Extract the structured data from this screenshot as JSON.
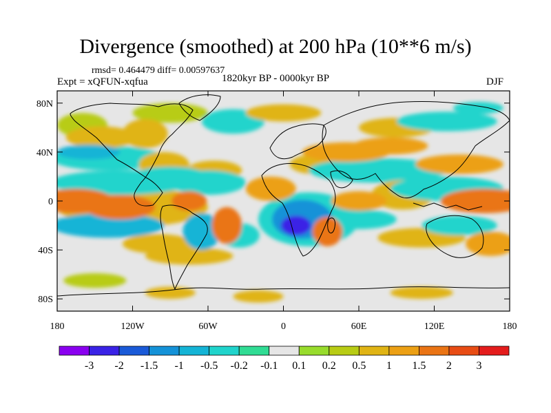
{
  "title": "Divergence (smoothed) at 200 hPa (10**6 m/s)",
  "stats": "rmsd= 0.464479 diff= 0.00597637",
  "experiment": "Expt = xQFUN-xqfua",
  "period": "1820kyr BP - 0000kyr BP",
  "season": "DJF",
  "chart_data": {
    "type": "heatmap",
    "variable": "Divergence (smoothed) at 200 hPa",
    "units": "10**6 m/s",
    "x_ticks": [
      "180",
      "120W",
      "60W",
      "0",
      "60E",
      "120E",
      "180"
    ],
    "y_ticks": [
      "80N",
      "40N",
      "0",
      "40S",
      "80S"
    ],
    "x_range": [
      -180,
      180
    ],
    "y_range": [
      -90,
      90
    ],
    "y_tick_values": [
      80,
      40,
      0,
      -40,
      -80
    ],
    "colorbar": {
      "labels": [
        "-3",
        "-2",
        "-1.5",
        "-1",
        "-0.5",
        "-0.2",
        "-0.1",
        "0.1",
        "0.2",
        "0.5",
        "1",
        "1.5",
        "2",
        "3"
      ],
      "colors": [
        "#8a00f0",
        "#3a22e6",
        "#1a5ad8",
        "#1492d8",
        "#14b4d6",
        "#20d4cc",
        "#30dc94",
        "#e6e6e6",
        "#98dc2c",
        "#b8cc14",
        "#e0b414",
        "#eca014",
        "#ea7414",
        "#e84c14",
        "#e41c1c"
      ]
    },
    "features": [
      {
        "lon": 10,
        "lat": -20,
        "value": -3,
        "rx": 12,
        "ry": 8
      },
      {
        "lon": 15,
        "lat": -15,
        "value": -1.5,
        "rx": 24,
        "ry": 16
      },
      {
        "lon": 20,
        "lat": -15,
        "value": -0.5,
        "rx": 40,
        "ry": 22
      },
      {
        "lon": -165,
        "lat": 0,
        "value": 1.5,
        "rx": 30,
        "ry": 10
      },
      {
        "lon": -130,
        "lat": -5,
        "value": 1.5,
        "rx": 28,
        "ry": 10
      },
      {
        "lon": -120,
        "lat": -5,
        "value": 0.5,
        "rx": 60,
        "ry": 16
      },
      {
        "lon": -140,
        "lat": -20,
        "value": -1,
        "rx": 45,
        "ry": 10
      },
      {
        "lon": -130,
        "lat": 15,
        "value": -0.5,
        "rx": 55,
        "ry": 10
      },
      {
        "lon": -140,
        "lat": 35,
        "value": -0.5,
        "rx": 45,
        "ry": 10
      },
      {
        "lon": -155,
        "lat": 40,
        "value": -1,
        "rx": 25,
        "ry": 6
      },
      {
        "lon": -145,
        "lat": 52,
        "value": 0.5,
        "rx": 28,
        "ry": 9
      },
      {
        "lon": -110,
        "lat": 55,
        "value": 0.5,
        "rx": 18,
        "ry": 12
      },
      {
        "lon": -95,
        "lat": 30,
        "value": 0.5,
        "rx": 20,
        "ry": 10
      },
      {
        "lon": -55,
        "lat": 25,
        "value": 0.5,
        "rx": 22,
        "ry": 8
      },
      {
        "lon": -60,
        "lat": 15,
        "value": -0.5,
        "rx": 30,
        "ry": 10
      },
      {
        "lon": -90,
        "lat": 20,
        "value": -0.5,
        "rx": 30,
        "ry": 8
      },
      {
        "lon": -75,
        "lat": 0,
        "value": 1.5,
        "rx": 14,
        "ry": 8
      },
      {
        "lon": -65,
        "lat": -25,
        "value": -1,
        "rx": 15,
        "ry": 15
      },
      {
        "lon": -45,
        "lat": -20,
        "value": 1.5,
        "rx": 12,
        "ry": 15
      },
      {
        "lon": -35,
        "lat": -28,
        "value": -0.5,
        "rx": 16,
        "ry": 10
      },
      {
        "lon": -100,
        "lat": -35,
        "value": 0.5,
        "rx": 28,
        "ry": 8
      },
      {
        "lon": -75,
        "lat": -45,
        "value": 0.5,
        "rx": 35,
        "ry": 7
      },
      {
        "lon": -10,
        "lat": 10,
        "value": 1,
        "rx": 20,
        "ry": 10
      },
      {
        "lon": 25,
        "lat": 30,
        "value": 0.5,
        "rx": 20,
        "ry": 8
      },
      {
        "lon": 50,
        "lat": 40,
        "value": 1,
        "rx": 35,
        "ry": 8
      },
      {
        "lon": 75,
        "lat": 25,
        "value": -0.5,
        "rx": 55,
        "ry": 10
      },
      {
        "lon": 85,
        "lat": 45,
        "value": 1,
        "rx": 30,
        "ry": 7
      },
      {
        "lon": 90,
        "lat": 60,
        "value": 0.5,
        "rx": 30,
        "ry": 8
      },
      {
        "lon": 60,
        "lat": 0,
        "value": 1,
        "rx": 22,
        "ry": 8
      },
      {
        "lon": 60,
        "lat": -15,
        "value": -0.5,
        "rx": 30,
        "ry": 8
      },
      {
        "lon": 35,
        "lat": -25,
        "value": 1.5,
        "rx": 12,
        "ry": 12
      },
      {
        "lon": 95,
        "lat": 5,
        "value": 0.5,
        "rx": 25,
        "ry": 12
      },
      {
        "lon": 130,
        "lat": 10,
        "value": -0.5,
        "rx": 45,
        "ry": 10
      },
      {
        "lon": 160,
        "lat": 0,
        "value": 1.5,
        "rx": 35,
        "ry": 10
      },
      {
        "lon": 140,
        "lat": 30,
        "value": 1,
        "rx": 35,
        "ry": 8
      },
      {
        "lon": 110,
        "lat": -30,
        "value": 0.5,
        "rx": 35,
        "ry": 8
      },
      {
        "lon": 140,
        "lat": -20,
        "value": -0.5,
        "rx": 30,
        "ry": 8
      },
      {
        "lon": 165,
        "lat": -35,
        "value": 1,
        "rx": 20,
        "ry": 10
      },
      {
        "lon": -160,
        "lat": 62,
        "value": 0.2,
        "rx": 20,
        "ry": 10
      },
      {
        "lon": -90,
        "lat": 72,
        "value": 0.2,
        "rx": 30,
        "ry": 8
      },
      {
        "lon": -40,
        "lat": 65,
        "value": -0.5,
        "rx": 25,
        "ry": 10
      },
      {
        "lon": 0,
        "lat": 72,
        "value": 0.5,
        "rx": 30,
        "ry": 7
      },
      {
        "lon": 130,
        "lat": 65,
        "value": -0.5,
        "rx": 40,
        "ry": 8
      },
      {
        "lon": 155,
        "lat": 76,
        "value": -0.5,
        "rx": 20,
        "ry": 5
      },
      {
        "lon": -150,
        "lat": -65,
        "value": 0.2,
        "rx": 25,
        "ry": 6
      },
      {
        "lon": -90,
        "lat": -75,
        "value": 0.5,
        "rx": 20,
        "ry": 5
      },
      {
        "lon": -20,
        "lat": -78,
        "value": 0.5,
        "rx": 20,
        "ry": 5
      },
      {
        "lon": 110,
        "lat": -75,
        "value": 0.5,
        "rx": 25,
        "ry": 5
      }
    ]
  }
}
